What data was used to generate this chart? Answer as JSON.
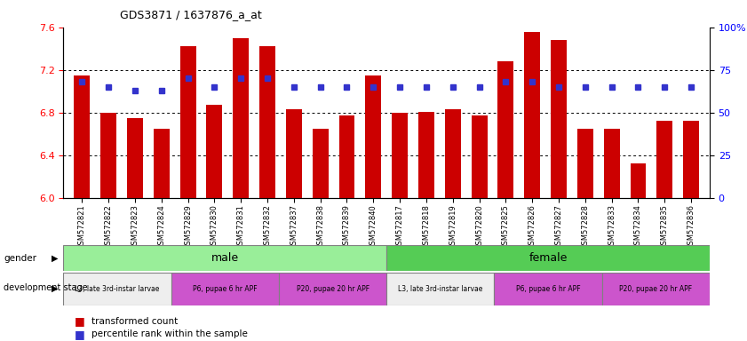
{
  "title": "GDS3871 / 1637876_a_at",
  "samples": [
    "GSM572821",
    "GSM572822",
    "GSM572823",
    "GSM572824",
    "GSM572829",
    "GSM572830",
    "GSM572831",
    "GSM572832",
    "GSM572837",
    "GSM572838",
    "GSM572839",
    "GSM572840",
    "GSM572817",
    "GSM572818",
    "GSM572819",
    "GSM572820",
    "GSM572825",
    "GSM572826",
    "GSM572827",
    "GSM572828",
    "GSM572833",
    "GSM572834",
    "GSM572835",
    "GSM572836"
  ],
  "transformed_count": [
    7.15,
    6.8,
    6.75,
    6.65,
    7.42,
    6.87,
    7.5,
    7.42,
    6.83,
    6.65,
    6.77,
    7.15,
    6.8,
    6.81,
    6.83,
    6.77,
    7.28,
    7.56,
    7.48,
    6.65,
    6.65,
    6.32,
    6.72,
    6.72
  ],
  "percentile_rank": [
    68,
    65,
    63,
    63,
    70,
    65,
    70,
    70,
    65,
    65,
    65,
    65,
    65,
    65,
    65,
    65,
    68,
    68,
    65,
    65,
    65,
    65,
    65,
    65
  ],
  "ylim_left": [
    6.0,
    7.6
  ],
  "ylim_right": [
    0,
    100
  ],
  "yticks_left": [
    6.0,
    6.4,
    6.8,
    7.2,
    7.6
  ],
  "yticks_right": [
    0,
    25,
    50,
    75,
    100
  ],
  "bar_color": "#cc0000",
  "dot_color": "#3333cc",
  "background_color": "#ffffff",
  "male_color": "#99ee99",
  "female_color": "#55cc55",
  "l3_color": "#eeeeee",
  "p6_color": "#cc55cc",
  "p20_color": "#cc55cc",
  "stage_defs": [
    [
      0,
      4,
      "#eeeeee",
      "L3, late 3rd-instar larvae"
    ],
    [
      4,
      4,
      "#cc55cc",
      "P6, pupae 6 hr APF"
    ],
    [
      8,
      4,
      "#cc55cc",
      "P20, pupae 20 hr APF"
    ],
    [
      12,
      4,
      "#eeeeee",
      "L3, late 3rd-instar larvae"
    ],
    [
      16,
      4,
      "#cc55cc",
      "P6, pupae 6 hr APF"
    ],
    [
      20,
      4,
      "#cc55cc",
      "P20, pupae 20 hr APF"
    ]
  ]
}
